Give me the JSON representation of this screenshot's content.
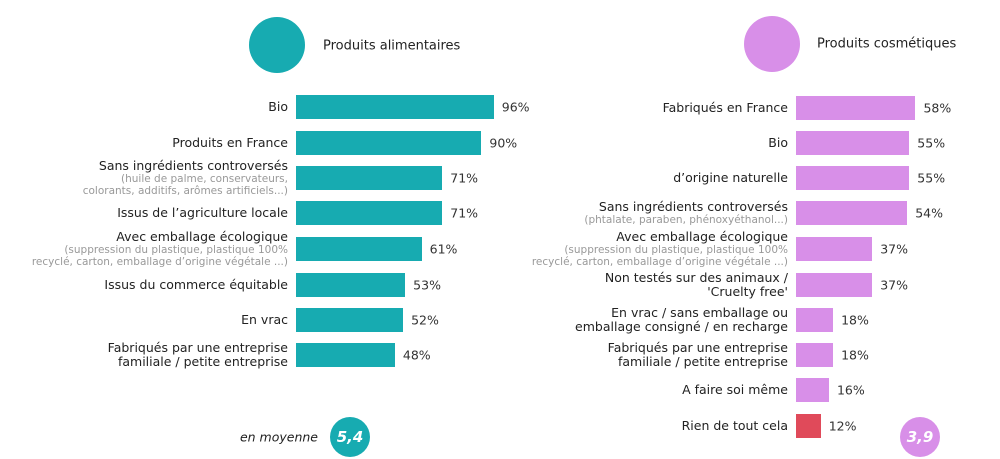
{
  "chart_data": [
    {
      "type": "bar",
      "title": "Produits alimentaires",
      "color": "#17abb1",
      "categories": [
        "Bio",
        "Produits en France",
        "Sans ingrédients controversés",
        "Issus de l’agriculture locale",
        "Avec emballage écologique",
        "Issus du commerce équitable",
        "En vrac",
        "Fabriqués par une entreprise\nfamiliale / petite entreprise"
      ],
      "notes": [
        null,
        null,
        "(huile de palme, conservateurs,\ncolorants, additifs, arômes artificiels...)",
        null,
        "(suppression du plastique, plastique 100%\nrecyclé, carton, emballage d’origine végétale ...)",
        null,
        null,
        null
      ],
      "values": [
        96,
        90,
        71,
        71,
        61,
        53,
        52,
        48
      ],
      "value_labels": [
        "96%",
        "90%",
        "71%",
        "71%",
        "61%",
        "53%",
        "52%",
        "48%"
      ],
      "average_label": "en moyenne",
      "average": {
        "value": 5.4,
        "label": "5,4"
      }
    },
    {
      "type": "bar",
      "title": "Produits cosmétiques",
      "colors": [
        "#d88fe8",
        "#d88fe8",
        "#d88fe8",
        "#d88fe8",
        "#d88fe8",
        "#d88fe8",
        "#d88fe8",
        "#d88fe8",
        "#d88fe8",
        "#e04a5a"
      ],
      "categories": [
        "Fabriqués en France",
        "Bio",
        "d’origine naturelle",
        "Sans ingrédients controversés",
        "Avec emballage écologique",
        "Non testés sur des animaux /\n'Cruelty free'",
        "En vrac / sans emballage ou\nemballage consigné / en recharge",
        "Fabriqués par une entreprise\nfamiliale / petite entreprise",
        "A faire soi même",
        "Rien de tout cela"
      ],
      "notes": [
        null,
        null,
        null,
        "(phtalate, paraben, phénoxyéthanol...)",
        "(suppression du plastique, plastique 100%\nrecyclé, carton, emballage d’origine végétale ...)",
        null,
        null,
        null,
        null,
        null
      ],
      "values": [
        58,
        55,
        55,
        54,
        37,
        37,
        18,
        18,
        16,
        12
      ],
      "value_labels": [
        "58%",
        "55%",
        "55%",
        "54%",
        "37%",
        "37%",
        "18%",
        "18%",
        "16%",
        "12%"
      ],
      "average": {
        "value": 3.9,
        "label": "3,9"
      }
    }
  ]
}
